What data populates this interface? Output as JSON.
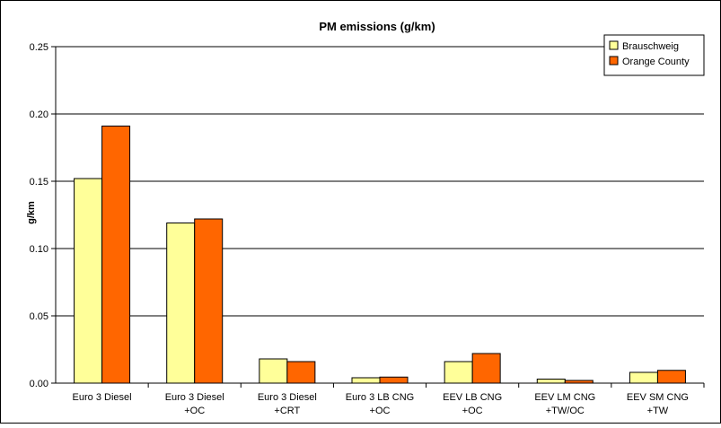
{
  "chart_data": {
    "type": "bar",
    "title": "PM emissions (g/km)",
    "xlabel": "",
    "ylabel": "g/km",
    "categories": [
      [
        "Euro 3 Diesel"
      ],
      [
        "Euro 3 Diesel",
        "+OC"
      ],
      [
        "Euro 3 Diesel",
        "+CRT"
      ],
      [
        "Euro 3 LB CNG",
        "+OC"
      ],
      [
        "EEV LB CNG",
        "+OC"
      ],
      [
        "EEV LM CNG",
        "+TW/OC"
      ],
      [
        "EEV SM CNG",
        "+TW"
      ]
    ],
    "series": [
      {
        "name": "Brauschweig",
        "color": "#ffff99",
        "values": [
          0.152,
          0.119,
          0.018,
          0.004,
          0.016,
          0.003,
          0.008
        ]
      },
      {
        "name": "Orange County",
        "color": "#ff6600",
        "values": [
          0.191,
          0.122,
          0.016,
          0.0045,
          0.022,
          0.002,
          0.0095
        ]
      }
    ],
    "ylim": [
      0,
      0.25
    ],
    "yticks": [
      0.0,
      0.05,
      0.1,
      0.15,
      0.2,
      0.25
    ],
    "ytick_labels": [
      "0.00",
      "0.05",
      "0.10",
      "0.15",
      "0.20",
      "0.25"
    ],
    "grid": true,
    "legend_position": "top-right"
  }
}
